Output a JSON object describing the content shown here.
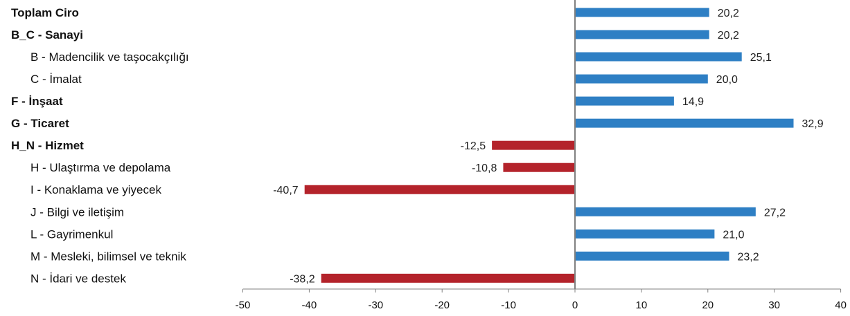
{
  "chart_data": {
    "type": "bar",
    "orientation": "horizontal",
    "title": "",
    "xlabel": "",
    "ylabel": "",
    "xlim": [
      -50,
      40
    ],
    "x_ticks": [
      -50,
      -40,
      -30,
      -20,
      -10,
      0,
      10,
      20,
      30,
      40
    ],
    "grid": false,
    "legend": "none",
    "positive_color": "#2e7fc4",
    "negative_color": "#b4232b",
    "categories": [
      "Toplam Ciro",
      "B_C - Sanayi",
      "B - Madencilik ve taşocakçılığı",
      "C - İmalat",
      "F - İnşaat",
      "G - Ticaret",
      "H_N - Hizmet",
      "H - Ulaştırma ve depolama",
      "I - Konaklama ve yiyecek",
      "J - Bilgi ve iletişim",
      "L - Gayrimenkul",
      "M - Mesleki, bilimsel ve teknik",
      "N - İdari ve destek"
    ],
    "bold_categories": [
      true,
      true,
      false,
      false,
      true,
      true,
      true,
      false,
      false,
      false,
      false,
      false,
      false
    ],
    "values": [
      20.2,
      20.2,
      25.1,
      20.0,
      14.9,
      32.9,
      -12.5,
      -10.8,
      -40.7,
      27.2,
      21.0,
      23.2,
      -38.2
    ],
    "value_labels": [
      "20,2",
      "20,2",
      "25,1",
      "20,0",
      "14,9",
      "32,9",
      "-12,5",
      "-10,8",
      "-40,7",
      "27,2",
      "21,0",
      "23,2",
      "-38,2"
    ]
  }
}
